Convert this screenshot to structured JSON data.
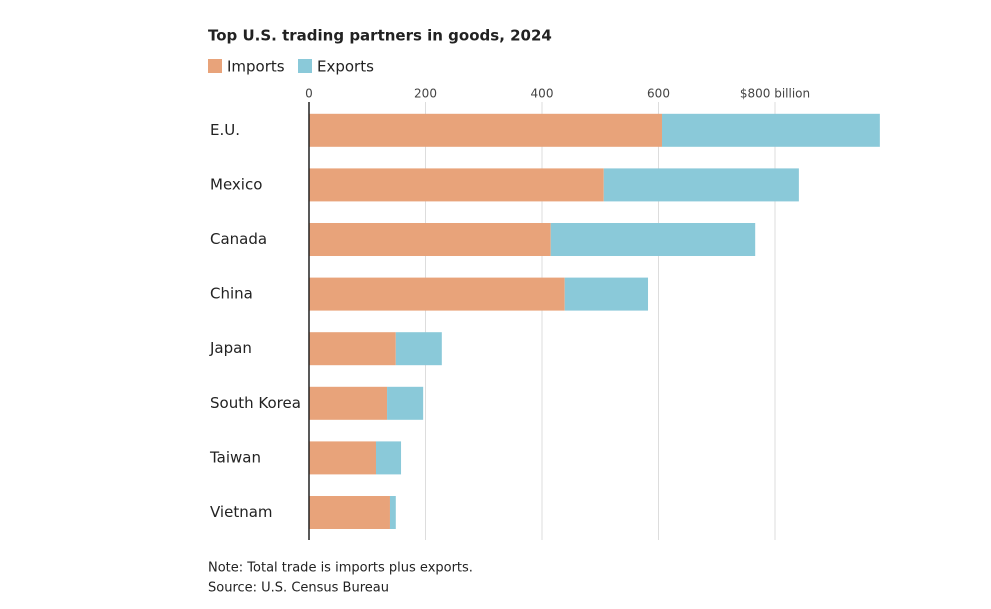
{
  "chart_data": {
    "type": "stacked-bar-horizontal",
    "title": "Top U.S. trading partners in goods, 2024",
    "categories": [
      "E.U.",
      "Mexico",
      "Canada",
      "China",
      "Japan",
      "South Korea",
      "Taiwan",
      "Vietnam"
    ],
    "series": [
      {
        "name": "Imports",
        "color": "#e8a37a",
        "values": [
          606,
          506,
          415,
          439,
          149,
          134,
          115,
          139
        ]
      },
      {
        "name": "Exports",
        "color": "#8ac9d9",
        "values": [
          374,
          335,
          351,
          143,
          79,
          62,
          43,
          10
        ]
      }
    ],
    "xlim": [
      0,
      1000
    ],
    "xticks": [
      0,
      200,
      400,
      600,
      {
        "value": 800,
        "label": "$800 billion"
      }
    ],
    "grid": true,
    "note": "Note: Total trade is imports plus exports.",
    "source": "Source: U.S. Census Bureau"
  }
}
